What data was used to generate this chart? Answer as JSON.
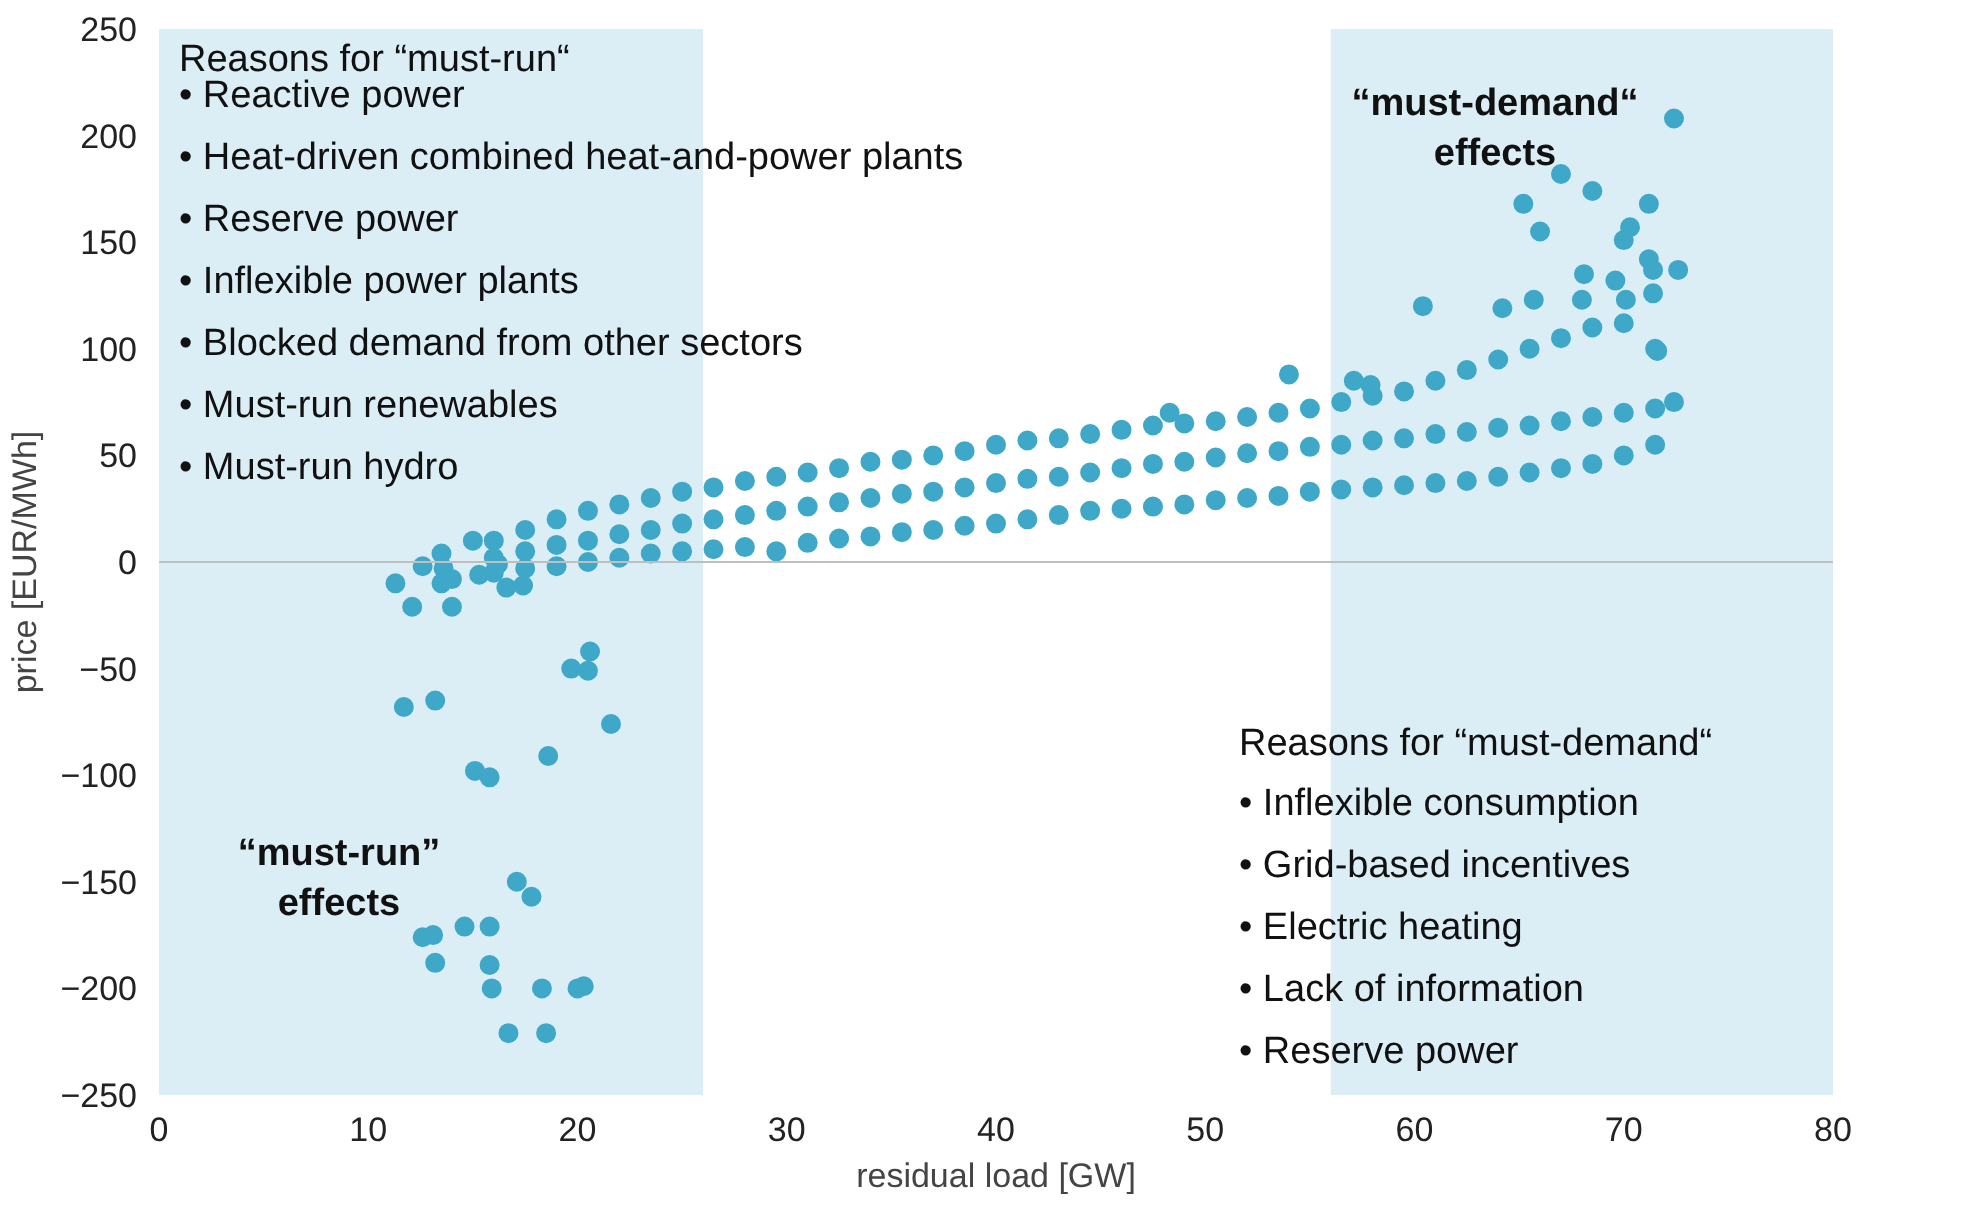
{
  "chart_data": {
    "type": "scatter",
    "xlabel": "residual load [GW]",
    "ylabel": "price [EUR/MWh]",
    "xlim": [
      0,
      80
    ],
    "xticks": [
      0,
      10,
      20,
      30,
      40,
      50,
      60,
      70,
      80
    ],
    "ylim": [
      -250,
      250
    ],
    "yticks": [
      -250,
      -200,
      -150,
      -100,
      -50,
      0,
      50,
      100,
      150,
      200,
      250
    ],
    "grid": false,
    "marker": "circle",
    "ref_lines": [
      {
        "axis": "y",
        "value": 0,
        "color": "#bfbfbf"
      }
    ],
    "bands": [
      {
        "axis": "x",
        "from": 0,
        "to": 26,
        "color": "#d3eaf2"
      },
      {
        "axis": "x",
        "from": 56,
        "to": 80,
        "color": "#d3eaf2"
      }
    ],
    "annotations": [
      "Reasons for “must-run“",
      "•  Reactive power",
      "•  Heat-driven combined heat-and-power plants",
      "•  Reserve power",
      "•  Inflexible power plants",
      "•  Blocked demand from other sectors",
      "•  Must-run renewables",
      "•  Must-run hydro",
      "“must-demand“\neffects",
      "“must-run”\neffects",
      "Reasons for “must-demand“",
      "•  Inflexible consumption",
      "•  Grid-based incentives",
      "•  Electric heating",
      "•  Lack of information",
      "•  Reserve power"
    ],
    "series": [
      {
        "color": "#3fa8c8",
        "x": [
          16,
          17.5,
          19,
          20.5,
          22,
          23.5,
          25,
          26.5,
          28,
          29.5,
          31,
          32.5,
          34,
          35.5,
          37,
          38.5,
          40,
          41.5,
          43,
          44.5,
          46,
          47.5,
          49,
          50.5,
          52,
          53.5,
          55,
          56.5,
          58,
          59.5,
          61,
          62.5,
          64,
          65.5,
          67,
          68.5,
          70,
          71.5,
          16,
          17.5,
          19,
          20.5,
          22,
          23.5,
          25,
          26.5,
          28,
          29.5,
          31,
          32.5,
          34,
          35.5,
          37,
          38.5,
          40,
          41.5,
          43,
          44.5,
          46,
          47.5,
          49,
          50.5,
          52,
          53.5,
          55,
          56.5,
          58,
          59.5,
          61,
          62.5,
          64,
          65.5,
          67,
          68.5,
          70,
          71.5,
          16,
          17.5,
          19,
          20.5,
          22,
          23.5,
          25,
          26.5,
          28,
          29.5,
          31,
          32.5,
          34,
          35.5,
          37,
          38.5,
          40,
          41.5,
          43,
          44.5,
          46,
          47.5,
          49,
          50.5,
          52,
          53.5,
          55,
          56.5,
          58,
          59.5,
          61,
          62.5,
          64,
          65.5,
          67,
          68.5,
          70,
          71.5,
          11.7,
          13.2,
          15.1,
          15.8,
          18.6,
          21.6,
          19.7,
          20.5,
          20.6,
          17.1,
          17.8,
          12.6,
          13.1,
          13.2,
          14.6,
          15.8,
          15.8,
          15.9,
          18.3,
          20.0,
          20.3,
          16.7,
          18.5,
          11.3,
          12.1,
          14.0,
          12.6,
          13.5,
          13.6,
          14.0,
          13.5,
          15.0,
          15.3,
          16.6,
          17.4,
          16.2,
          72.4,
          67.0,
          68.5,
          65.2,
          71.2,
          70.3,
          70.0,
          66.0,
          60.4,
          68.1,
          71.2,
          71.4,
          72.6,
          71.4,
          71.6,
          72.4,
          69.6,
          64.2,
          65.7,
          70.1,
          68.0,
          54.0,
          48.3,
          57.1,
          57.9
        ],
        "values": [
          -5,
          -3,
          -2,
          0,
          2,
          4,
          5,
          6,
          7,
          5,
          9,
          11,
          12,
          14,
          15,
          17,
          18,
          20,
          22,
          24,
          25,
          26,
          27,
          29,
          30,
          31,
          33,
          34,
          35,
          36,
          37,
          38,
          40,
          42,
          44,
          46,
          50,
          55,
          2,
          5,
          8,
          10,
          13,
          15,
          18,
          20,
          22,
          24,
          26,
          28,
          30,
          32,
          33,
          35,
          37,
          39,
          40,
          42,
          44,
          46,
          47,
          49,
          51,
          52,
          54,
          55,
          57,
          58,
          60,
          61,
          63,
          64,
          66,
          68,
          70,
          72,
          10,
          15,
          20,
          24,
          27,
          30,
          33,
          35,
          38,
          40,
          42,
          44,
          47,
          48,
          50,
          52,
          55,
          57,
          58,
          60,
          62,
          64,
          65,
          66,
          68,
          70,
          72,
          75,
          78,
          80,
          85,
          90,
          95,
          100,
          105,
          110,
          112,
          100,
          -68,
          -65,
          -98,
          -101,
          -91,
          -76,
          -50,
          -51,
          -42,
          -150,
          -157,
          -176,
          -175,
          -188,
          -171,
          -171,
          -189,
          -200,
          -200,
          -200,
          -199,
          -221,
          -221,
          -10,
          -21,
          -21,
          -2,
          4,
          -3,
          -8,
          -10,
          10,
          -6,
          -12,
          -11,
          -1,
          208,
          182,
          174,
          168,
          168,
          157,
          151,
          155,
          120,
          135,
          142,
          137,
          137,
          126,
          99,
          75,
          132,
          119,
          123,
          123,
          123,
          88,
          70,
          85,
          83
        ]
      }
    ]
  }
}
